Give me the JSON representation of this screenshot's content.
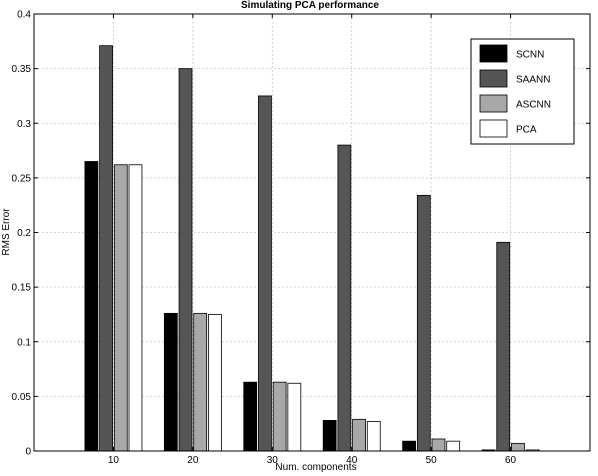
{
  "chart_data": {
    "type": "bar",
    "title": "Simulating PCA performance",
    "xlabel": "Num. components",
    "ylabel": "RMS Error",
    "categories": [
      "10",
      "20",
      "30",
      "40",
      "50",
      "60"
    ],
    "ylim": [
      0,
      0.4
    ],
    "yticks": [
      "0",
      "0.05",
      "0.1",
      "0.15",
      "0.2",
      "0.25",
      "0.3",
      "0.35",
      "0.4"
    ],
    "grid": true,
    "legend_position": "top-right",
    "series": [
      {
        "name": "SCNN",
        "color": "#000000",
        "values": [
          0.265,
          0.126,
          0.063,
          0.028,
          0.009,
          0.001
        ]
      },
      {
        "name": "SAANN",
        "color": "#555555",
        "values": [
          0.371,
          0.35,
          0.325,
          0.28,
          0.234,
          0.191
        ]
      },
      {
        "name": "ASCNN",
        "color": "#a8a8a8",
        "values": [
          0.262,
          0.126,
          0.063,
          0.029,
          0.011,
          0.007
        ]
      },
      {
        "name": "PCA",
        "color": "#ffffff",
        "values": [
          0.262,
          0.125,
          0.062,
          0.027,
          0.009,
          0.001
        ]
      }
    ]
  }
}
